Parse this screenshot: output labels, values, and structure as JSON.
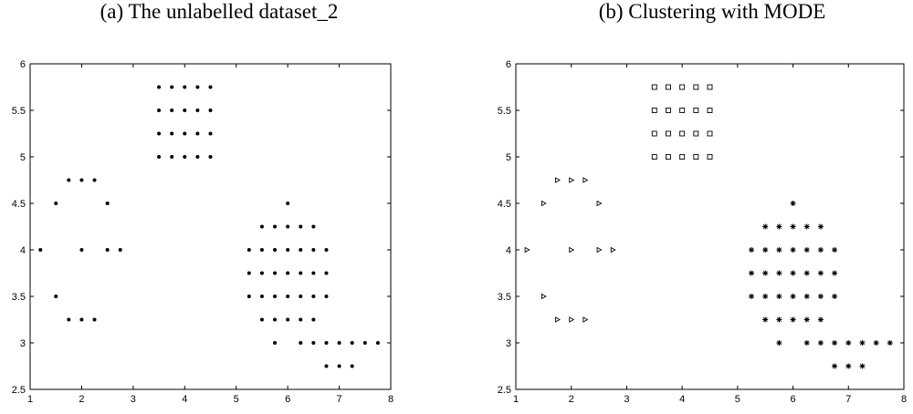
{
  "chart_data": [
    {
      "type": "scatter",
      "title": "(a) The unlabelled dataset_2",
      "xlabel": "",
      "ylabel": "",
      "xlim": [
        1,
        8
      ],
      "ylim": [
        2.5,
        6
      ],
      "xticks": [
        1,
        2,
        3,
        4,
        5,
        6,
        7,
        8
      ],
      "yticks": [
        2.5,
        3,
        3.5,
        4,
        4.5,
        5,
        5.5,
        6
      ],
      "grid": false,
      "series": [
        {
          "marker": "dot",
          "points": [
            [
              3.5,
              5.75
            ],
            [
              3.75,
              5.75
            ],
            [
              4,
              5.75
            ],
            [
              4.25,
              5.75
            ],
            [
              4.5,
              5.75
            ],
            [
              3.5,
              5.5
            ],
            [
              3.75,
              5.5
            ],
            [
              4,
              5.5
            ],
            [
              4.25,
              5.5
            ],
            [
              4.5,
              5.5
            ],
            [
              3.5,
              5.25
            ],
            [
              3.75,
              5.25
            ],
            [
              4,
              5.25
            ],
            [
              4.25,
              5.25
            ],
            [
              4.5,
              5.25
            ],
            [
              3.5,
              5
            ],
            [
              3.75,
              5
            ],
            [
              4,
              5
            ],
            [
              4.25,
              5
            ],
            [
              4.5,
              5
            ]
          ]
        },
        {
          "marker": "dot",
          "points": [
            [
              1.75,
              4.75
            ],
            [
              2,
              4.75
            ],
            [
              2.25,
              4.75
            ],
            [
              1.5,
              4.5
            ],
            [
              2.5,
              4.5
            ],
            [
              1.2,
              4
            ],
            [
              2,
              4
            ],
            [
              2.5,
              4
            ],
            [
              2.75,
              4
            ],
            [
              1.5,
              3.5
            ],
            [
              1.75,
              3.25
            ],
            [
              2,
              3.25
            ],
            [
              2.25,
              3.25
            ]
          ]
        },
        {
          "marker": "dot",
          "points": [
            [
              6,
              4.5
            ],
            [
              5.5,
              4.25
            ],
            [
              5.75,
              4.25
            ],
            [
              6,
              4.25
            ],
            [
              6.25,
              4.25
            ],
            [
              6.5,
              4.25
            ],
            [
              5.25,
              4
            ],
            [
              5.5,
              4
            ],
            [
              5.75,
              4
            ],
            [
              6,
              4
            ],
            [
              6.25,
              4
            ],
            [
              6.5,
              4
            ],
            [
              6.75,
              4
            ],
            [
              5.25,
              3.75
            ],
            [
              5.5,
              3.75
            ],
            [
              5.75,
              3.75
            ],
            [
              6,
              3.75
            ],
            [
              6.25,
              3.75
            ],
            [
              6.5,
              3.75
            ],
            [
              6.75,
              3.75
            ],
            [
              5.25,
              3.5
            ],
            [
              5.5,
              3.5
            ],
            [
              5.75,
              3.5
            ],
            [
              6,
              3.5
            ],
            [
              6.25,
              3.5
            ],
            [
              6.5,
              3.5
            ],
            [
              6.75,
              3.5
            ],
            [
              5.5,
              3.25
            ],
            [
              5.75,
              3.25
            ],
            [
              6,
              3.25
            ],
            [
              6.25,
              3.25
            ],
            [
              6.5,
              3.25
            ],
            [
              5.75,
              3
            ],
            [
              6.25,
              3
            ],
            [
              6.5,
              3
            ],
            [
              6.75,
              3
            ],
            [
              7,
              3
            ],
            [
              7.25,
              3
            ],
            [
              7.5,
              3
            ],
            [
              7.75,
              3
            ],
            [
              6.75,
              2.75
            ],
            [
              7,
              2.75
            ],
            [
              7.25,
              2.75
            ]
          ]
        }
      ]
    },
    {
      "type": "scatter",
      "title": "(b) Clustering with MODE",
      "xlabel": "",
      "ylabel": "",
      "xlim": [
        1,
        8
      ],
      "ylim": [
        2.5,
        6
      ],
      "xticks": [
        1,
        2,
        3,
        4,
        5,
        6,
        7,
        8
      ],
      "yticks": [
        2.5,
        3,
        3.5,
        4,
        4.5,
        5,
        5.5,
        6
      ],
      "grid": false,
      "series": [
        {
          "marker": "square",
          "points": [
            [
              3.5,
              5.75
            ],
            [
              3.75,
              5.75
            ],
            [
              4,
              5.75
            ],
            [
              4.25,
              5.75
            ],
            [
              4.5,
              5.75
            ],
            [
              3.5,
              5.5
            ],
            [
              3.75,
              5.5
            ],
            [
              4,
              5.5
            ],
            [
              4.25,
              5.5
            ],
            [
              4.5,
              5.5
            ],
            [
              3.5,
              5.25
            ],
            [
              3.75,
              5.25
            ],
            [
              4,
              5.25
            ],
            [
              4.25,
              5.25
            ],
            [
              4.5,
              5.25
            ],
            [
              3.5,
              5
            ],
            [
              3.75,
              5
            ],
            [
              4,
              5
            ],
            [
              4.25,
              5
            ],
            [
              4.5,
              5
            ]
          ]
        },
        {
          "marker": "triangle-right",
          "points": [
            [
              1.75,
              4.75
            ],
            [
              2,
              4.75
            ],
            [
              2.25,
              4.75
            ],
            [
              1.5,
              4.5
            ],
            [
              2.5,
              4.5
            ],
            [
              1.2,
              4
            ],
            [
              2,
              4
            ],
            [
              2.5,
              4
            ],
            [
              2.75,
              4
            ],
            [
              1.5,
              3.5
            ],
            [
              1.75,
              3.25
            ],
            [
              2,
              3.25
            ],
            [
              2.25,
              3.25
            ]
          ]
        },
        {
          "marker": "asterisk",
          "points": [
            [
              6,
              4.5
            ],
            [
              5.5,
              4.25
            ],
            [
              5.75,
              4.25
            ],
            [
              6,
              4.25
            ],
            [
              6.25,
              4.25
            ],
            [
              6.5,
              4.25
            ],
            [
              5.25,
              4
            ],
            [
              5.5,
              4
            ],
            [
              5.75,
              4
            ],
            [
              6,
              4
            ],
            [
              6.25,
              4
            ],
            [
              6.5,
              4
            ],
            [
              6.75,
              4
            ],
            [
              5.25,
              3.75
            ],
            [
              5.5,
              3.75
            ],
            [
              5.75,
              3.75
            ],
            [
              6,
              3.75
            ],
            [
              6.25,
              3.75
            ],
            [
              6.5,
              3.75
            ],
            [
              6.75,
              3.75
            ],
            [
              5.25,
              3.5
            ],
            [
              5.5,
              3.5
            ],
            [
              5.75,
              3.5
            ],
            [
              6,
              3.5
            ],
            [
              6.25,
              3.5
            ],
            [
              6.5,
              3.5
            ],
            [
              6.75,
              3.5
            ],
            [
              5.5,
              3.25
            ],
            [
              5.75,
              3.25
            ],
            [
              6,
              3.25
            ],
            [
              6.25,
              3.25
            ],
            [
              6.5,
              3.25
            ],
            [
              5.75,
              3
            ],
            [
              6.25,
              3
            ],
            [
              6.5,
              3
            ],
            [
              6.75,
              3
            ],
            [
              7,
              3
            ],
            [
              7.25,
              3
            ],
            [
              7.5,
              3
            ],
            [
              7.75,
              3
            ],
            [
              6.75,
              2.75
            ],
            [
              7,
              2.75
            ],
            [
              7.25,
              2.75
            ]
          ]
        }
      ]
    }
  ]
}
